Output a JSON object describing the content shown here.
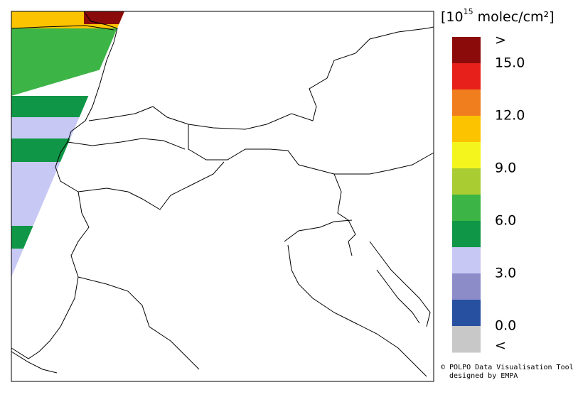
{
  "legend": {
    "title": {
      "base": "[10",
      "exponent": "15",
      "unit": " molec/cm²]"
    },
    "range": [
      -1.5,
      16.5
    ],
    "colors": [
      "#8b0a0a",
      "#e8201c",
      "#f07d1e",
      "#fcc400",
      "#f5f51e",
      "#a8cc32",
      "#3cb446",
      "#0f9646",
      "#c8c8f5",
      "#8c8cc8",
      "#2850a0",
      "#c8c8c8"
    ],
    "over_label": ">",
    "under_label": "<",
    "ticks": [
      {
        "value": 15,
        "label": "15.0"
      },
      {
        "value": 12,
        "label": "12.0"
      },
      {
        "value": 9,
        "label": "9.0"
      },
      {
        "value": 6,
        "label": "6.0"
      },
      {
        "value": 3,
        "label": "3.0"
      },
      {
        "value": 0,
        "label": "0.0"
      }
    ]
  },
  "credit": [
    "© POLPO Data Visualisation Tool",
    "designed by EMPA"
  ]
}
